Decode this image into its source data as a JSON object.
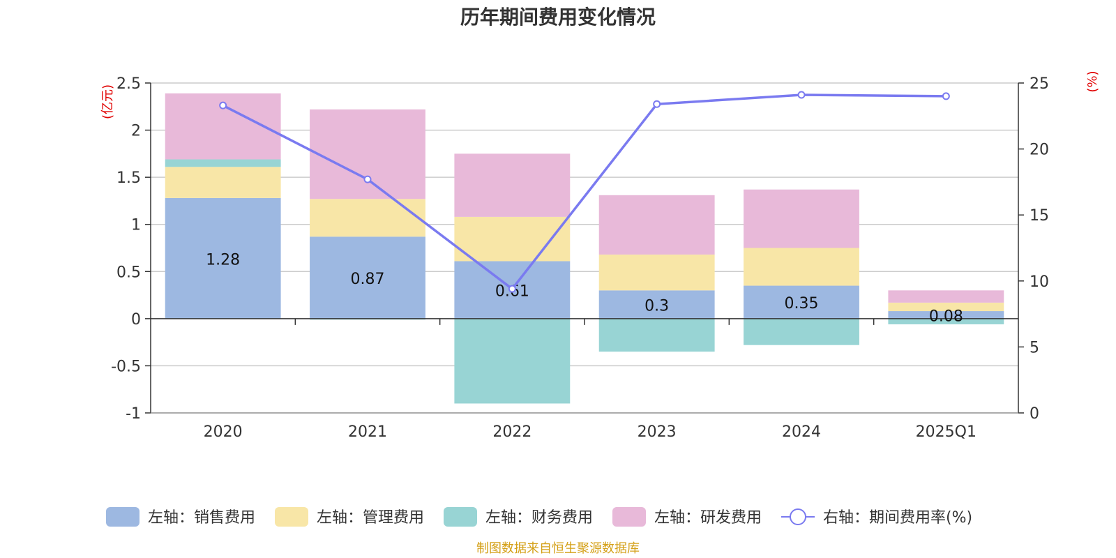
{
  "chart_data": {
    "type": "bar",
    "stacked": true,
    "title": "历年期间费用变化情况",
    "categories": [
      "2020",
      "2021",
      "2022",
      "2023",
      "2024",
      "2025Q1"
    ],
    "left_axis": {
      "unit": "(亿元)",
      "range": [
        -1,
        2.5
      ],
      "ticks": [
        "-1",
        "-0.5",
        "0",
        "0.5",
        "1",
        "1.5",
        "2",
        "2.5"
      ],
      "tick_values": [
        -1,
        -0.5,
        0,
        0.5,
        1,
        1.5,
        2,
        2.5
      ]
    },
    "right_axis": {
      "unit": "(%)",
      "range": [
        0,
        25
      ],
      "ticks": [
        "0",
        "5",
        "10",
        "15",
        "20",
        "25"
      ],
      "tick_values": [
        0,
        5,
        10,
        15,
        20,
        25
      ]
    },
    "series": [
      {
        "name": "左轴：销售费用",
        "kind": "bar",
        "color": "#9db8e1",
        "values": [
          1.28,
          0.87,
          0.61,
          0.3,
          0.35,
          0.08
        ],
        "labels": [
          "1.28",
          "0.87",
          "0.61",
          "0.3",
          "0.35",
          "0.08"
        ]
      },
      {
        "name": "左轴：管理费用",
        "kind": "bar",
        "color": "#f8e6a7",
        "values": [
          0.33,
          0.4,
          0.47,
          0.38,
          0.4,
          0.09
        ]
      },
      {
        "name": "左轴：财务费用",
        "kind": "bar",
        "color": "#98d4d4",
        "values": [
          0.08,
          -0.01,
          -0.9,
          -0.35,
          -0.28,
          -0.06
        ]
      },
      {
        "name": "左轴：研发费用",
        "kind": "bar",
        "color": "#e8b9d9",
        "values": [
          0.7,
          0.95,
          0.67,
          0.63,
          0.62,
          0.13
        ]
      },
      {
        "name": "右轴：期间费用率(%)",
        "kind": "line",
        "color": "#7a7af0",
        "axis": "right",
        "values": [
          23.3,
          17.7,
          9.4,
          23.4,
          24.1,
          24.0
        ]
      }
    ],
    "legend_position": "bottom",
    "source_note": "制图数据来自恒生聚源数据库"
  }
}
